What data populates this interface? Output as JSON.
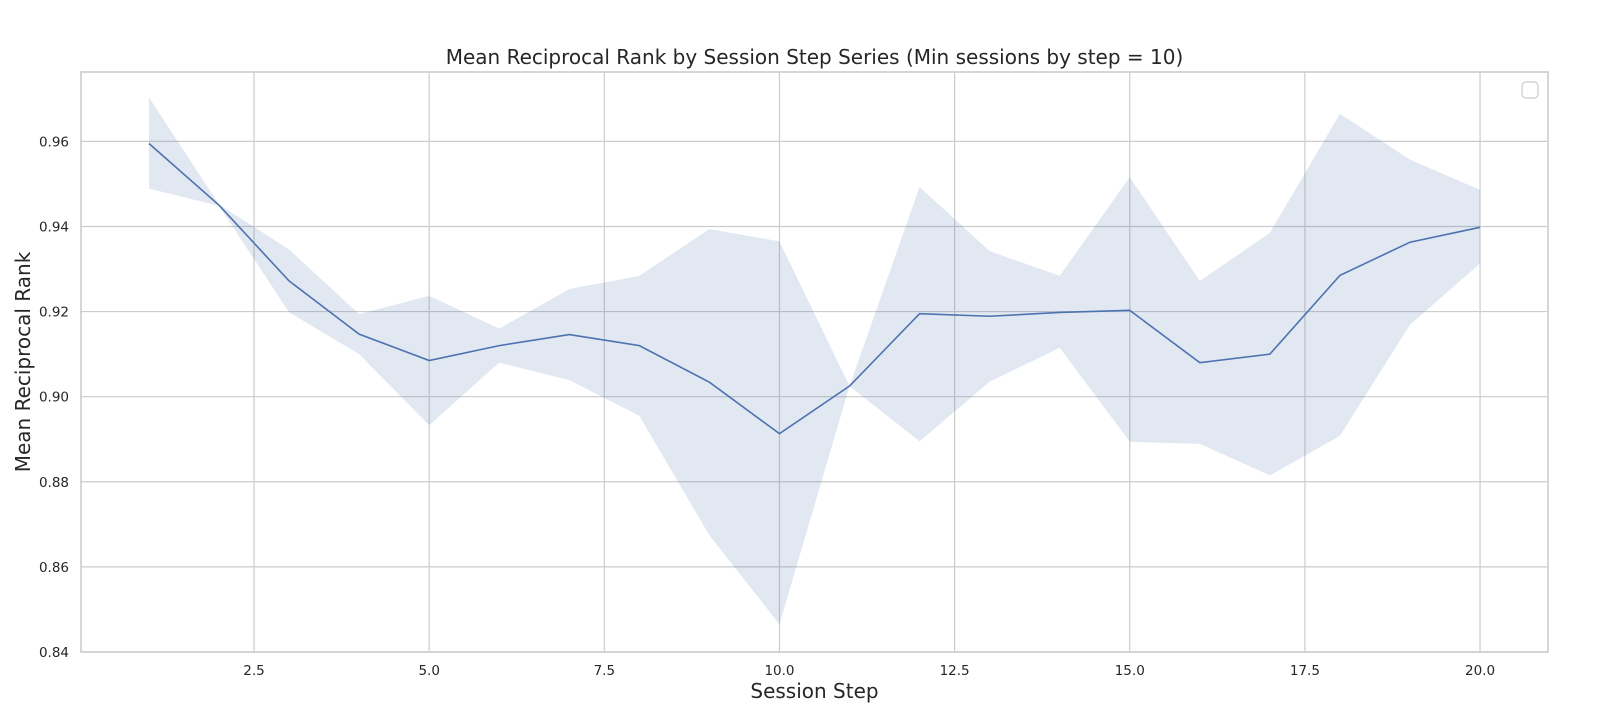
{
  "chart_data": {
    "type": "line",
    "title": "Mean Reciprocal Rank by Session Step Series (Min sessions by step = 10)",
    "xlabel": "Session Step",
    "ylabel": "Mean Reciprocal Rank",
    "xlim": [
      0.03,
      20.97
    ],
    "ylim": [
      0.84,
      0.9763
    ],
    "xticks": [
      2.5,
      5.0,
      7.5,
      10.0,
      12.5,
      15.0,
      17.5,
      20.0
    ],
    "xtick_labels": [
      "2.5",
      "5.0",
      "7.5",
      "10.0",
      "12.5",
      "15.0",
      "17.5",
      "20.0"
    ],
    "yticks": [
      0.84,
      0.86,
      0.88,
      0.9,
      0.92,
      0.94,
      0.96
    ],
    "ytick_labels": [
      "0.84",
      "0.86",
      "0.88",
      "0.90",
      "0.92",
      "0.94",
      "0.96"
    ],
    "grid": true,
    "legend": {
      "placement": "top-right",
      "entries": []
    },
    "line_color": "#4c72b0",
    "band_color": "#4c72b0",
    "series": [
      {
        "x": [
          1,
          2,
          3,
          4,
          5,
          6,
          7,
          8,
          9,
          10,
          11,
          12,
          13,
          14,
          15,
          16,
          17,
          18,
          19,
          20
        ],
        "y": [
          0.9595,
          0.945,
          0.9272,
          0.9147,
          0.9085,
          0.912,
          0.9146,
          0.912,
          0.9034,
          0.8913,
          0.9025,
          0.9195,
          0.9189,
          0.9198,
          0.9203,
          0.908,
          0.91,
          0.9285,
          0.9363,
          0.9398
        ],
        "lower": [
          0.9489,
          0.9448,
          0.9198,
          0.91,
          0.8933,
          0.908,
          0.9039,
          0.8955,
          0.8674,
          0.8465,
          0.9025,
          0.8895,
          0.9035,
          0.9115,
          0.8894,
          0.8889,
          0.8815,
          0.8908,
          0.9169,
          0.9313
        ],
        "upper": [
          0.9703,
          0.9452,
          0.9346,
          0.9194,
          0.9237,
          0.916,
          0.9253,
          0.9284,
          0.9394,
          0.9365,
          0.9025,
          0.9493,
          0.9342,
          0.9284,
          0.9516,
          0.9272,
          0.9385,
          0.9665,
          0.9557,
          0.9486
        ]
      }
    ]
  }
}
